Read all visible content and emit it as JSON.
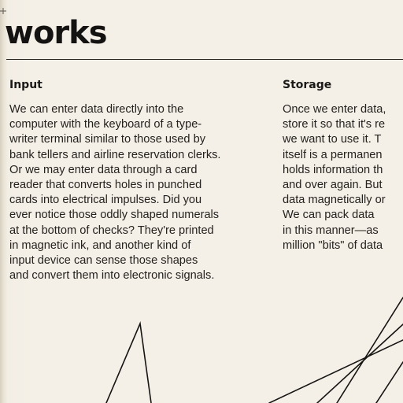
{
  "headline": "works",
  "sections": {
    "input": {
      "heading": "Input",
      "lines": [
        "We can enter data directly into the",
        "computer with the keyboard of a type-",
        "writer terminal similar to those used by",
        "bank tellers and airline reservation clerks.",
        "Or we may enter data through a card",
        "reader that converts holes in punched",
        "cards into electrical impulses. Did you",
        "ever notice those oddly shaped numerals",
        "at the bottom of checks? They're printed",
        "in magnetic ink, and another kind of",
        "input device can sense those shapes",
        "and convert them into electronic signals."
      ]
    },
    "storage": {
      "heading": "Storage",
      "lines": [
        "Once we enter data,",
        "store it so that it's re",
        "we want to use it. T",
        "itself is a permanen",
        "holds information th",
        "and over again. But",
        "data magnetically or",
        "We can pack data",
        "in this manner—as",
        "million \"bits\" of data"
      ]
    }
  },
  "colors": {
    "paper": "#f4efe6",
    "ink": "#1e1c1a",
    "line_art": "#161514"
  },
  "icons": {
    "crop_mark": "crop-mark-icon"
  }
}
